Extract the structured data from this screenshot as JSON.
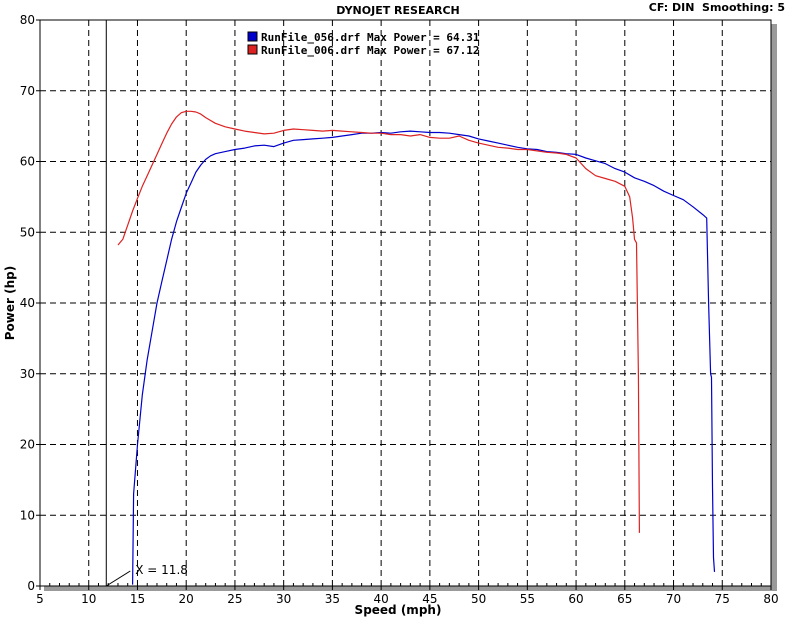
{
  "header": {
    "title": "DYNOJET RESEARCH",
    "info": "CF: DIN  Smoothing: 5"
  },
  "chart_data": {
    "type": "line",
    "title": "DYNOJET RESEARCH",
    "xlabel": "Speed (mph)",
    "ylabel": "Power (hp)",
    "xlim": [
      5,
      80
    ],
    "ylim": [
      0,
      80
    ],
    "xticks": [
      5,
      10,
      15,
      20,
      25,
      30,
      35,
      40,
      45,
      50,
      55,
      60,
      65,
      70,
      75,
      80
    ],
    "yticks": [
      0,
      10,
      20,
      30,
      40,
      50,
      60,
      70,
      80
    ],
    "grid": true,
    "legend_position": "top-center",
    "cursor": {
      "x": 11.8,
      "label": "X = 11.8"
    },
    "series": [
      {
        "name": "RunFile_056.drf Max Power = 64.31",
        "color": "#0000cc",
        "x": [
          14.5,
          14.6,
          15.0,
          15.5,
          16.0,
          16.5,
          17.0,
          17.5,
          18.0,
          18.5,
          19.0,
          19.5,
          20.0,
          20.5,
          21.0,
          21.5,
          22.0,
          22.5,
          23.0,
          24.0,
          25.0,
          26.0,
          27.0,
          28.0,
          29.0,
          30.0,
          31.0,
          32.0,
          33.0,
          34.0,
          35.0,
          36.0,
          37.0,
          38.0,
          39.0,
          40.0,
          41.0,
          42.0,
          43.0,
          44.0,
          45.0,
          46.0,
          47.0,
          48.0,
          49.0,
          50.0,
          51.0,
          52.0,
          53.0,
          54.0,
          55.0,
          56.0,
          57.0,
          58.0,
          59.0,
          60.0,
          61.0,
          62.0,
          63.0,
          64.0,
          65.0,
          66.0,
          67.0,
          68.0,
          69.0,
          70.0,
          71.0,
          72.0,
          73.0,
          73.4,
          73.6,
          73.8,
          73.9,
          74.0,
          74.1,
          74.2
        ],
        "y": [
          0.2,
          13.0,
          20.0,
          27.0,
          32.0,
          36.0,
          40.0,
          43.0,
          46.0,
          49.0,
          51.5,
          53.5,
          55.5,
          57.0,
          58.5,
          59.5,
          60.3,
          60.8,
          61.1,
          61.4,
          61.7,
          61.9,
          62.2,
          62.3,
          62.1,
          62.6,
          63.0,
          63.1,
          63.2,
          63.3,
          63.4,
          63.6,
          63.8,
          64.0,
          64.0,
          64.1,
          64.0,
          64.2,
          64.3,
          64.2,
          64.1,
          64.1,
          64.0,
          63.8,
          63.6,
          63.2,
          62.9,
          62.6,
          62.3,
          62.0,
          61.8,
          61.7,
          61.4,
          61.3,
          61.1,
          61.0,
          60.5,
          60.1,
          59.7,
          59.0,
          58.5,
          57.7,
          57.2,
          56.6,
          55.8,
          55.2,
          54.6,
          53.6,
          52.5,
          52.0,
          40.0,
          30.0,
          29.5,
          14.0,
          4.0,
          2.0
        ]
      },
      {
        "name": "RunFile_006.drf Max Power = 67.12",
        "color": "#dd2222",
        "x": [
          13.0,
          13.5,
          14.0,
          14.5,
          15.0,
          15.5,
          16.0,
          16.5,
          17.0,
          17.5,
          18.0,
          18.5,
          19.0,
          19.5,
          20.0,
          20.5,
          21.0,
          21.5,
          22.0,
          22.5,
          23.0,
          24.0,
          25.0,
          26.0,
          27.0,
          28.0,
          29.0,
          30.0,
          31.0,
          32.0,
          33.0,
          34.0,
          35.0,
          36.0,
          37.0,
          38.0,
          39.0,
          40.0,
          41.0,
          42.0,
          43.0,
          44.0,
          45.0,
          46.0,
          47.0,
          48.0,
          49.0,
          50.0,
          51.0,
          52.0,
          53.0,
          54.0,
          55.0,
          56.0,
          57.0,
          58.0,
          59.0,
          60.0,
          61.0,
          62.0,
          63.0,
          64.0,
          65.0,
          65.5,
          65.8,
          66.0,
          66.2,
          66.4,
          66.5
        ],
        "y": [
          48.2,
          49.0,
          51.0,
          53.0,
          54.8,
          56.5,
          58.0,
          59.5,
          61.0,
          62.5,
          64.0,
          65.3,
          66.3,
          66.9,
          67.1,
          67.1,
          67.0,
          66.7,
          66.2,
          65.8,
          65.4,
          64.9,
          64.6,
          64.3,
          64.1,
          63.9,
          64.0,
          64.4,
          64.6,
          64.5,
          64.4,
          64.3,
          64.4,
          64.3,
          64.2,
          64.1,
          64.0,
          64.0,
          63.8,
          63.8,
          63.6,
          63.8,
          63.4,
          63.3,
          63.3,
          63.6,
          63.0,
          62.6,
          62.3,
          62.0,
          61.9,
          61.7,
          61.7,
          61.5,
          61.3,
          61.2,
          61.0,
          60.5,
          59.0,
          58.0,
          57.6,
          57.2,
          56.5,
          55.0,
          52.0,
          49.0,
          48.5,
          30.0,
          7.5
        ]
      }
    ]
  }
}
